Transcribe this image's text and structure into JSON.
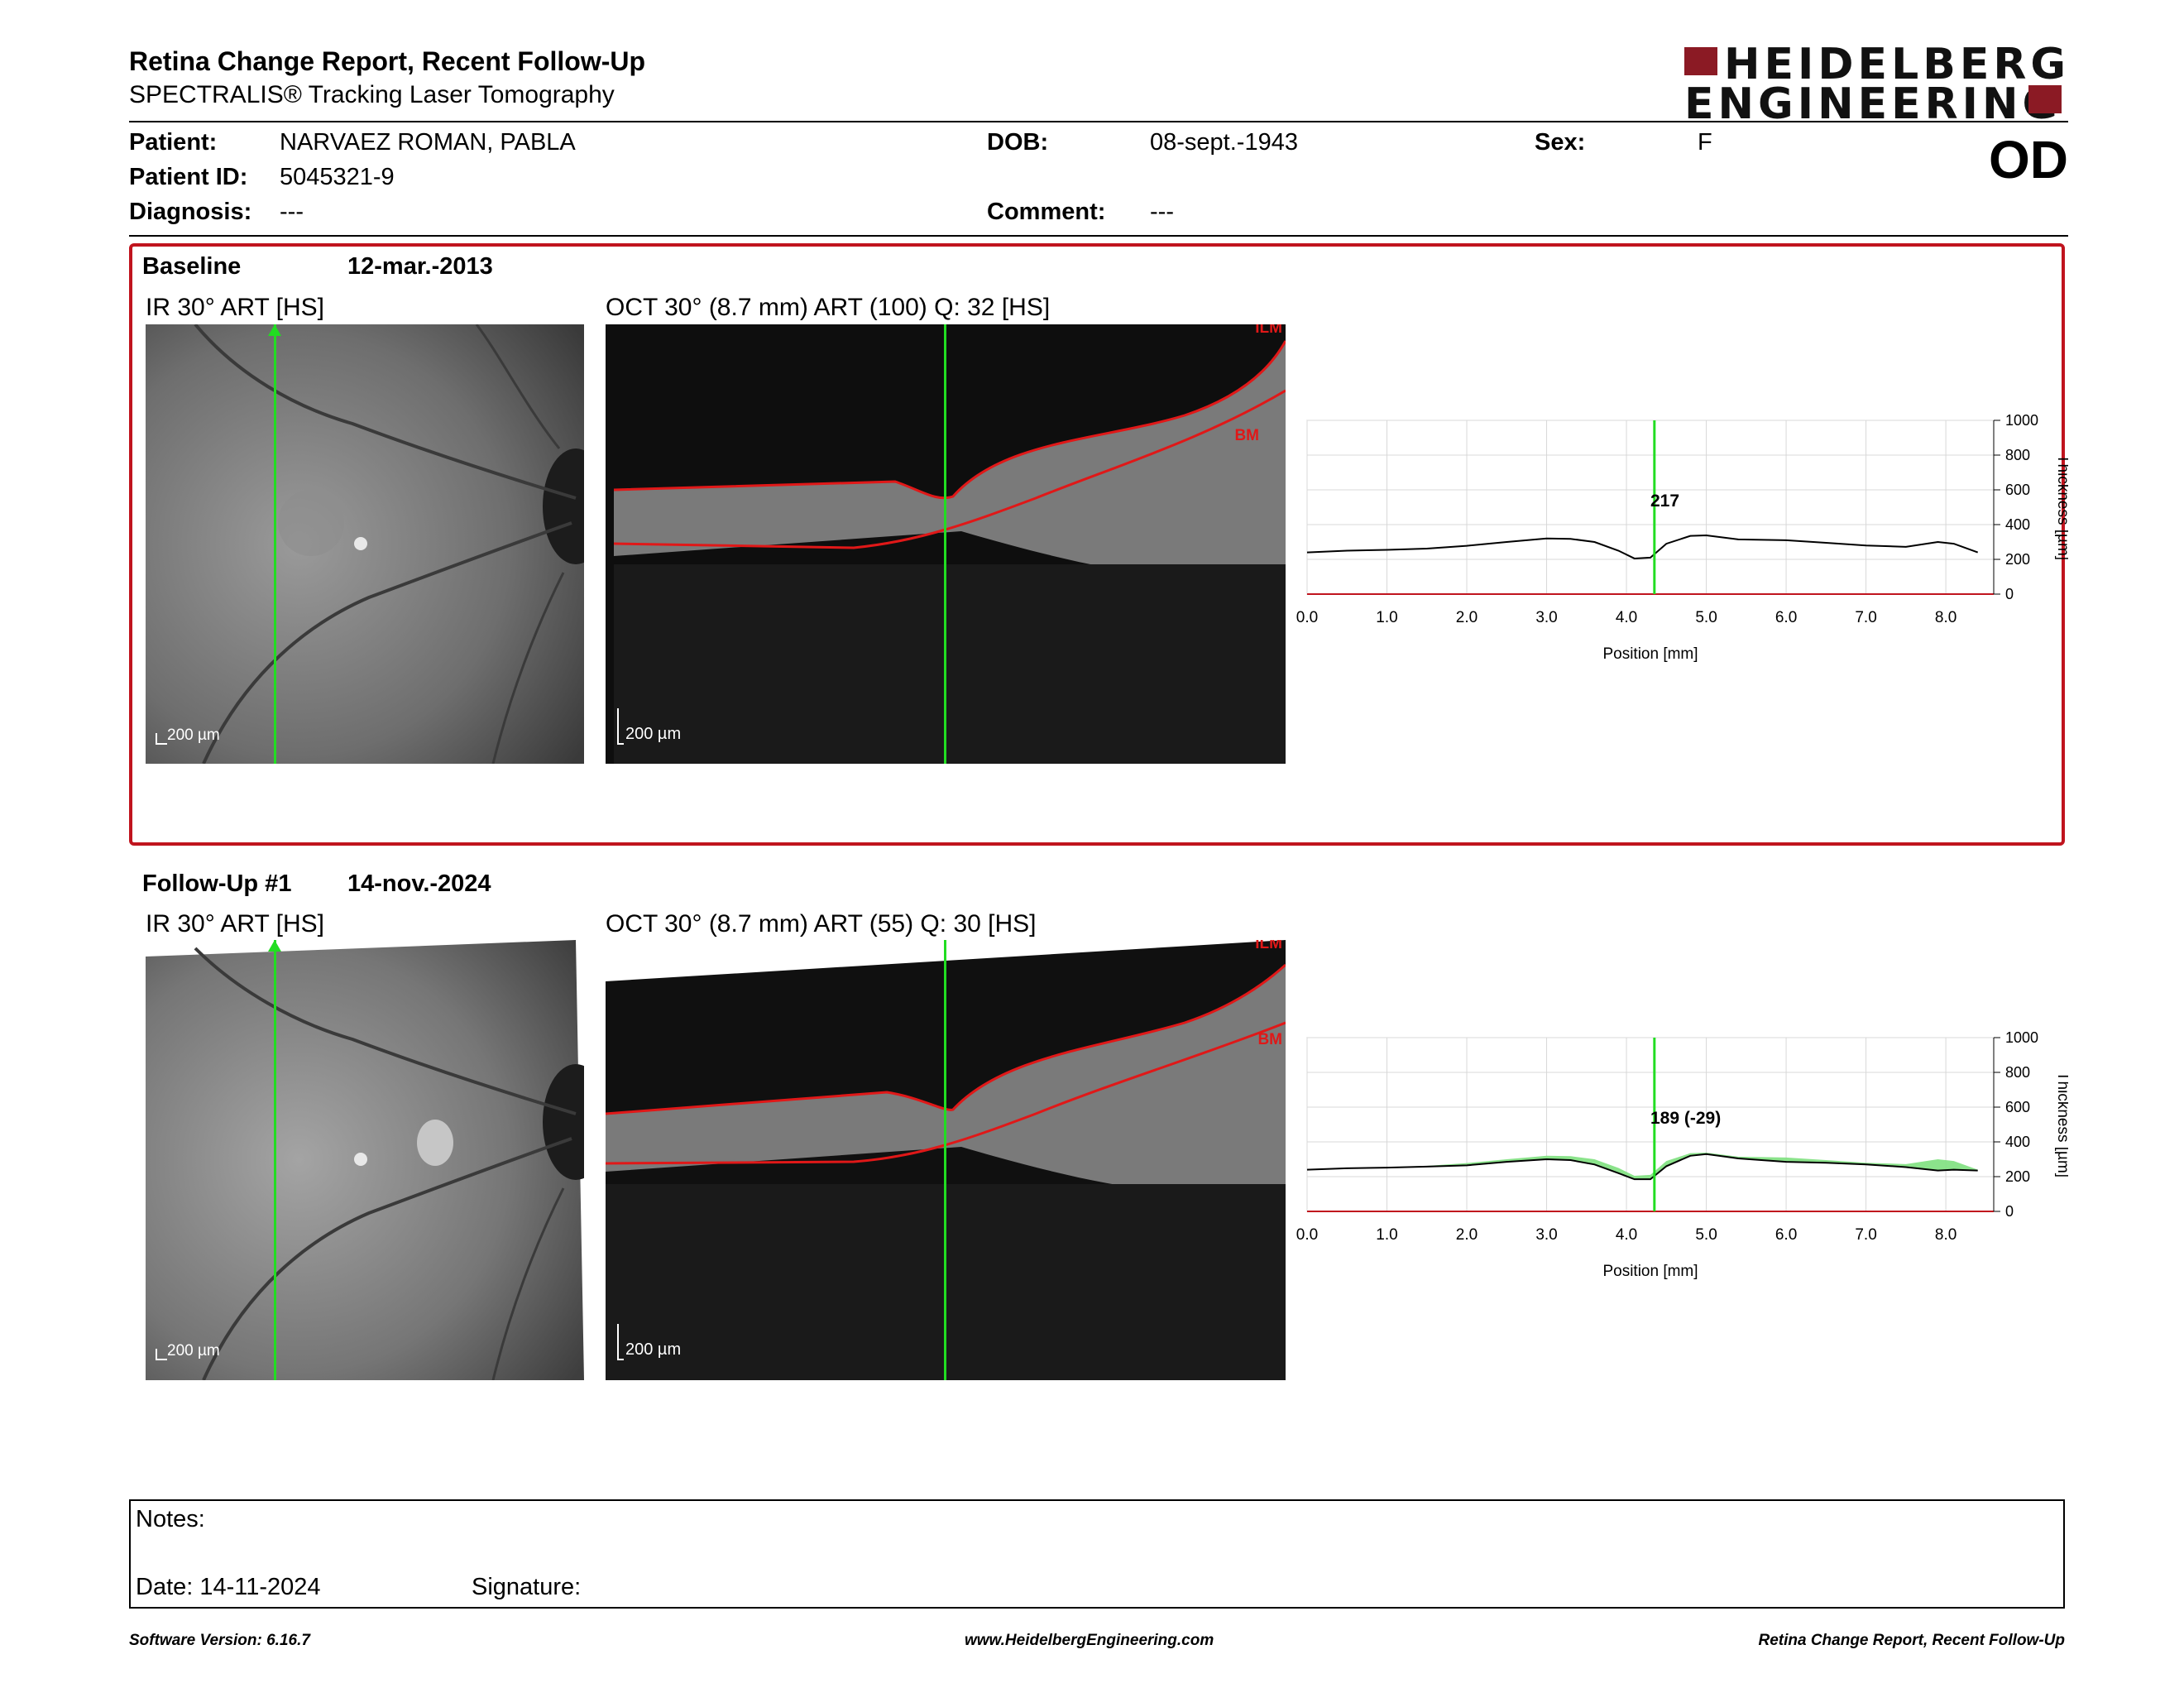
{
  "report": {
    "title": "Retina Change Report, Recent Follow-Up",
    "subtitle": "SPECTRALIS® Tracking Laser Tomography",
    "eye": "OD"
  },
  "logo": {
    "line1": "HEIDELBERG",
    "line2": "ENGINEERING",
    "brand_color": "#8b1a24"
  },
  "patient": {
    "patient_label": "Patient:",
    "patient_name": "NARVAEZ ROMAN, PABLA",
    "id_label": "Patient ID:",
    "id_value": "5045321-9",
    "diagnosis_label": "Diagnosis:",
    "diagnosis_value": "---",
    "dob_label": "DOB:",
    "dob_value": "08-sept.-1943",
    "comment_label": "Comment:",
    "comment_value": "---",
    "sex_label": "Sex:",
    "sex_value": "F"
  },
  "baseline": {
    "label": "Baseline",
    "date": "12-mar.-2013",
    "ir_caption": "IR 30° ART [HS]",
    "oct_caption": "OCT 30° (8.7 mm) ART (100) Q: 32 [HS]",
    "scale_label": "200 µm",
    "ilm_label": "ILM",
    "bm_label": "BM",
    "marker_value": "217"
  },
  "followup": {
    "label": "Follow-Up #1",
    "date": "14-nov.-2024",
    "ir_caption": "IR 30° ART [HS]",
    "oct_caption": "OCT 30° (8.7 mm) ART (55) Q: 30 [HS]",
    "scale_label": "200 µm",
    "ilm_label": "ILM",
    "bm_label": "BM",
    "marker_value": "189 (-29)"
  },
  "colors": {
    "frame_red": "#c0141e",
    "marker_green": "#22dd22",
    "diff_fill": "#7ee07e",
    "curve": "#000000"
  },
  "chart_data": [
    {
      "type": "line",
      "title": "",
      "xlabel": "Position [mm]",
      "ylabel": "Thickness [µm]",
      "xlim": [
        0,
        8.6
      ],
      "ylim": [
        0,
        1000
      ],
      "xticks": [
        "0.0",
        "1.0",
        "2.0",
        "3.0",
        "4.0",
        "5.0",
        "6.0",
        "7.0",
        "8.0"
      ],
      "yticks": [
        "0",
        "200",
        "400",
        "600",
        "800",
        "1000"
      ],
      "grid": true,
      "marker_x": 4.35,
      "series": [
        {
          "x": [
            0.0,
            0.5,
            1.0,
            1.5,
            2.0,
            2.5,
            3.0,
            3.3,
            3.6,
            3.9,
            4.1,
            4.3,
            4.5,
            4.8,
            5.0,
            5.4,
            6.0,
            6.5,
            7.0,
            7.5,
            7.9,
            8.1,
            8.4
          ],
          "y": [
            240,
            250,
            255,
            262,
            278,
            300,
            320,
            318,
            300,
            250,
            205,
            210,
            290,
            335,
            338,
            315,
            310,
            295,
            280,
            272,
            300,
            290,
            240
          ]
        }
      ]
    },
    {
      "type": "line",
      "title": "",
      "xlabel": "Position [mm]",
      "ylabel": "Thickness [µm]",
      "xlim": [
        0,
        8.6
      ],
      "ylim": [
        0,
        1000
      ],
      "xticks": [
        "0.0",
        "1.0",
        "2.0",
        "3.0",
        "4.0",
        "5.0",
        "6.0",
        "7.0",
        "8.0"
      ],
      "yticks": [
        "0",
        "200",
        "400",
        "600",
        "800",
        "1000"
      ],
      "grid": true,
      "marker_x": 4.35,
      "series": [
        {
          "x": [
            0.0,
            0.5,
            1.0,
            1.5,
            2.0,
            2.5,
            3.0,
            3.3,
            3.6,
            3.9,
            4.1,
            4.3,
            4.5,
            4.8,
            5.0,
            5.4,
            6.0,
            6.5,
            7.0,
            7.5,
            7.9,
            8.1,
            8.4
          ],
          "y": [
            240,
            248,
            252,
            258,
            265,
            285,
            300,
            295,
            270,
            220,
            185,
            185,
            260,
            320,
            330,
            305,
            285,
            280,
            270,
            255,
            235,
            240,
            235
          ]
        }
      ]
    }
  ],
  "notes": {
    "notes_label": "Notes:",
    "date_label": "Date: 14-11-2024",
    "signature_label": "Signature:"
  },
  "footer": {
    "software": "Software Version: 6.16.7",
    "website": "www.HeidelbergEngineering.com",
    "report_name": "Retina Change Report, Recent Follow-Up"
  }
}
